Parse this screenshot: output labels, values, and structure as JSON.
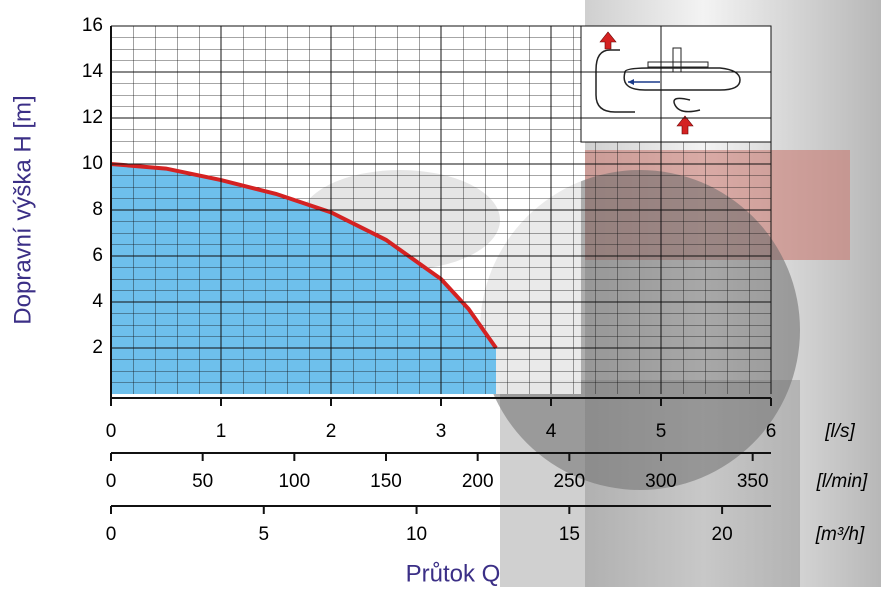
{
  "chart_data": {
    "type": "line",
    "x": [
      0,
      0.5,
      1,
      1.5,
      2,
      2.5,
      3,
      3.25,
      3.5
    ],
    "values": [
      10,
      9.8,
      9.3,
      8.7,
      7.9,
      6.7,
      5,
      3.7,
      2
    ],
    "color": "#d42222",
    "fill_color": "#6ec0ec",
    "xlim": [
      0,
      6
    ],
    "xticks": [
      0,
      1,
      2,
      3,
      4,
      5,
      6
    ],
    "x_unit": "[l/s]",
    "x2lim": [
      0,
      360
    ],
    "x2ticks": [
      0,
      50,
      100,
      150,
      200,
      250,
      300,
      350
    ],
    "x2_unit": "[l/min]",
    "x3lim": [
      0,
      21.6
    ],
    "x3ticks": [
      0,
      5,
      10,
      15,
      20
    ],
    "x3_unit": "[m³/h]",
    "ylim": [
      0,
      16
    ],
    "yticks": [
      2,
      4,
      6,
      8,
      10,
      12,
      14,
      16
    ],
    "ylabel": "Dopravní výška H [m]",
    "xlabel": "Průtok Q",
    "grid": true
  }
}
